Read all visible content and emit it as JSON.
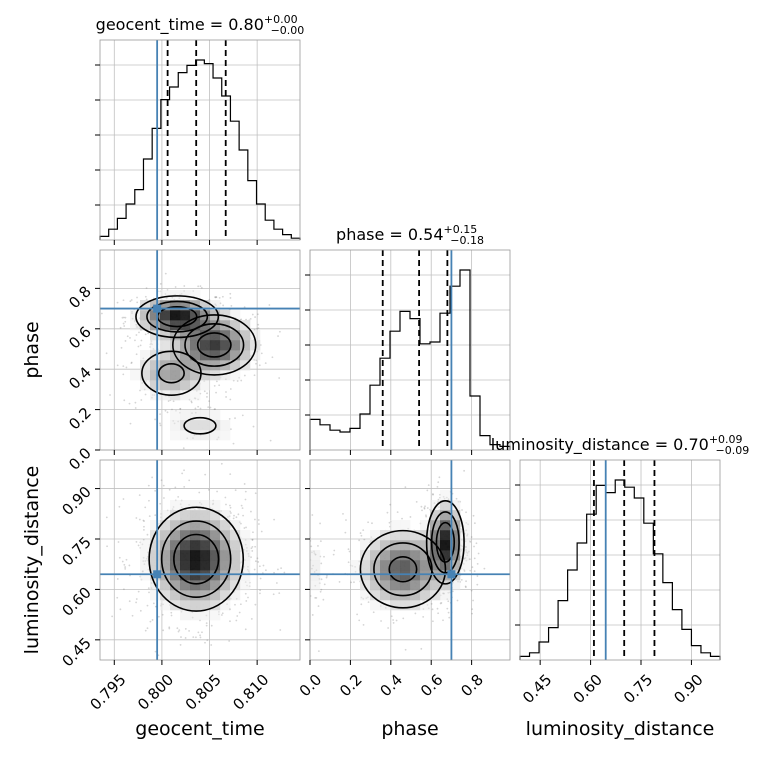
{
  "chart_data": {
    "type": "corner",
    "parameters": [
      {
        "key": "geocent_time",
        "label": "geocent_time",
        "title_name": "geocent_time",
        "median": "0.80",
        "err_plus": "+0.00",
        "err_minus": "−0.00",
        "range": [
          0.7935,
          0.8145
        ],
        "ticks": [
          0.795,
          0.8,
          0.805,
          0.81
        ],
        "tick_labels": [
          "0.795",
          "0.800",
          "0.805",
          "0.810"
        ],
        "truth": 0.7995,
        "quantiles": [
          0.8006,
          0.8036,
          0.8067
        ],
        "hist": [
          0.02,
          0.06,
          0.12,
          0.2,
          0.28,
          0.45,
          0.62,
          0.78,
          0.85,
          0.93,
          0.97,
          1.0,
          0.98,
          0.9,
          0.8,
          0.66,
          0.5,
          0.33,
          0.2,
          0.11,
          0.06,
          0.03,
          0.01
        ]
      },
      {
        "key": "phase",
        "label": "phase",
        "title_name": "phase",
        "median": "0.54",
        "err_plus": "+0.15",
        "err_minus": "−0.18",
        "range": [
          0.0,
          0.99
        ],
        "ticks": [
          0.0,
          0.2,
          0.4,
          0.6,
          0.8
        ],
        "tick_labels": [
          "0.0",
          "0.2",
          "0.4",
          "0.6",
          "0.8"
        ],
        "truth": 0.7,
        "quantiles": [
          0.36,
          0.54,
          0.68
        ],
        "hist": [
          0.17,
          0.14,
          0.11,
          0.1,
          0.12,
          0.2,
          0.36,
          0.51,
          0.66,
          0.77,
          0.73,
          0.59,
          0.6,
          0.76,
          0.91,
          1.0,
          0.3,
          0.08,
          0.03,
          0.02
        ]
      },
      {
        "key": "luminosity_distance",
        "label": "luminosity_distance",
        "title_name": "luminosity_distance",
        "median": "0.70",
        "err_plus": "+0.09",
        "err_minus": "−0.09",
        "range": [
          0.39,
          0.985
        ],
        "ticks": [
          0.45,
          0.6,
          0.75,
          0.9
        ],
        "tick_labels": [
          "0.45",
          "0.60",
          "0.75",
          "0.90"
        ],
        "truth": 0.645,
        "quantiles": [
          0.61,
          0.7,
          0.79
        ],
        "hist": [
          0.02,
          0.04,
          0.1,
          0.18,
          0.33,
          0.5,
          0.65,
          0.81,
          0.97,
          0.93,
          1.0,
          0.96,
          0.9,
          0.76,
          0.59,
          0.43,
          0.28,
          0.17,
          0.08,
          0.04,
          0.02
        ]
      }
    ],
    "pairs": [
      {
        "x": "geocent_time",
        "y": "phase",
        "blobs": [
          {
            "cx": 0.8016,
            "cy": 0.66,
            "sx": 0.0021,
            "sy": 0.05,
            "w": 1.0
          },
          {
            "cx": 0.8055,
            "cy": 0.52,
            "sx": 0.0022,
            "sy": 0.075,
            "w": 0.85
          },
          {
            "cx": 0.801,
            "cy": 0.38,
            "sx": 0.002,
            "sy": 0.07,
            "w": 0.4
          },
          {
            "cx": 0.804,
            "cy": 0.12,
            "sx": 0.0025,
            "sy": 0.06,
            "w": 0.15
          }
        ]
      },
      {
        "x": "geocent_time",
        "y": "luminosity_distance",
        "blobs": [
          {
            "cx": 0.8036,
            "cy": 0.69,
            "sx": 0.0024,
            "sy": 0.075,
            "w": 1.0
          }
        ]
      },
      {
        "x": "phase",
        "y": "luminosity_distance",
        "blobs": [
          {
            "cx": 0.67,
            "cy": 0.74,
            "sx": 0.045,
            "sy": 0.06,
            "w": 1.0
          },
          {
            "cx": 0.46,
            "cy": 0.66,
            "sx": 0.11,
            "sy": 0.06,
            "w": 0.75
          },
          {
            "cx": 0.02,
            "cy": 0.66,
            "sx": 0.03,
            "sy": 0.06,
            "w": 0.12
          }
        ]
      }
    ],
    "colors": {
      "truth": "#4682b4",
      "hist": "#000000",
      "quantile": "#000000",
      "contour": "#000000",
      "grid": "#c0c0c0",
      "scatter": "#888888"
    }
  }
}
